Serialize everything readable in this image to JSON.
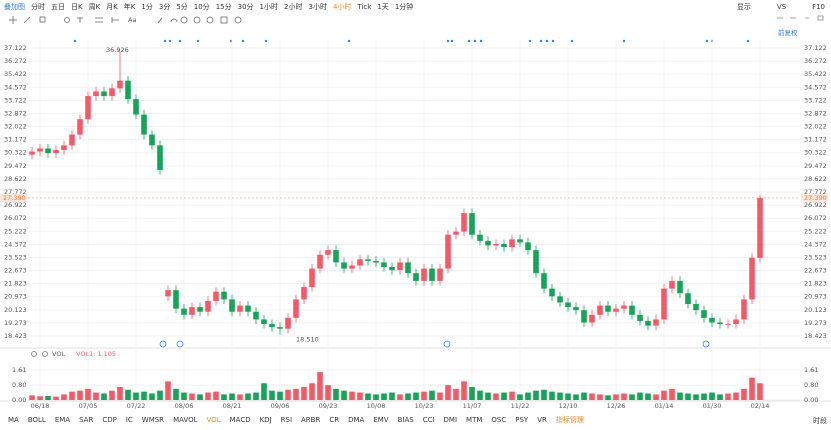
{
  "toolbar": {
    "first": "叠加图",
    "tabs": [
      "分时",
      "五日",
      "日K",
      "周K",
      "月K",
      "年K",
      "1分",
      "3分",
      "5分",
      "10分",
      "15分",
      "30分",
      "1小时",
      "2小时",
      "3小时",
      "4小时",
      "Tick",
      "1天",
      "1分钟"
    ],
    "active": 15,
    "right": [
      "显示",
      "VS",
      "F10"
    ]
  },
  "adjust": "前复权",
  "indicators": {
    "items": [
      "MA",
      "BOLL",
      "EMA",
      "SAR",
      "CDP",
      "IC",
      "WMSR",
      "MAVOL",
      "VOL",
      "MACD",
      "KDJ",
      "RSI",
      "ARBR",
      "CR",
      "DMA",
      "EMV",
      "BIAS",
      "CCI",
      "DMI",
      "MTM",
      "OSC",
      "PSY",
      "VR",
      "指标管理"
    ],
    "active": [
      8,
      23
    ],
    "session": "时段"
  },
  "chart_data": {
    "type": "candlestick",
    "up_color": "#f25a6a",
    "down_color": "#17a35a",
    "grid": true,
    "categories": [
      null,
      "06/18",
      null,
      null,
      null,
      null,
      null,
      "07/05",
      null,
      null,
      null,
      null,
      null,
      "07/22",
      null,
      null,
      null,
      null,
      null,
      "08/06",
      null,
      null,
      null,
      null,
      null,
      "08/21",
      null,
      null,
      null,
      null,
      null,
      "09/06",
      null,
      null,
      null,
      null,
      null,
      "09/23",
      null,
      null,
      null,
      null,
      null,
      "10/08",
      null,
      null,
      null,
      null,
      null,
      "10/23",
      null,
      null,
      null,
      null,
      null,
      "11/07",
      null,
      null,
      null,
      null,
      null,
      "11/22",
      null,
      null,
      null,
      null,
      null,
      "12/10",
      null,
      null,
      null,
      null,
      null,
      "12/26",
      null,
      null,
      null,
      null,
      null,
      "01/14",
      null,
      null,
      null,
      null,
      null,
      "01/30",
      null,
      null,
      null,
      null,
      null,
      "02/14"
    ],
    "open": [
      30.2,
      30.4,
      30.6,
      30.3,
      30.5,
      30.8,
      31.5,
      32.5,
      34.0,
      34.3,
      34.0,
      34.5,
      35.0,
      33.8,
      32.8,
      31.5,
      30.8,
      21.0,
      21.4,
      20.2,
      19.8,
      20.3,
      20.0,
      20.7,
      21.3,
      20.8,
      20.0,
      20.4,
      20.0,
      19.5,
      19.2,
      19.0,
      18.9,
      19.6,
      20.8,
      21.6,
      22.8,
      23.7,
      24.0,
      23.2,
      22.8,
      23.0,
      23.4,
      23.3,
      23.2,
      22.9,
      22.7,
      23.2,
      22.5,
      22.0,
      22.8,
      22.0,
      22.8,
      25.0,
      25.2,
      26.4,
      25.0,
      24.6,
      24.3,
      24.4,
      24.2,
      24.7,
      24.5,
      24.0,
      22.5,
      21.5,
      21.0,
      20.6,
      20.3,
      20.1,
      19.3,
      19.8,
      20.4,
      20.0,
      20.2,
      20.4,
      19.8,
      19.4,
      19.1,
      19.5,
      21.5,
      22.0,
      21.2,
      20.5,
      20.1,
      19.6,
      19.3,
      19.2,
      19.2,
      19.5,
      20.8,
      23.5
    ],
    "high": [
      30.7,
      30.9,
      30.9,
      30.8,
      31.1,
      31.8,
      32.8,
      34.3,
      34.6,
      34.6,
      34.8,
      36.926,
      35.3,
      34.1,
      33.1,
      31.8,
      31.1,
      21.7,
      21.7,
      20.5,
      20.6,
      20.6,
      21.0,
      21.6,
      21.6,
      21.1,
      20.7,
      20.7,
      20.3,
      19.8,
      19.5,
      19.3,
      19.9,
      21.1,
      21.9,
      23.1,
      24.0,
      24.3,
      24.3,
      23.5,
      23.3,
      23.7,
      23.7,
      23.6,
      23.5,
      23.2,
      23.5,
      23.5,
      22.8,
      23.1,
      23.1,
      23.1,
      25.3,
      25.5,
      26.7,
      26.7,
      25.3,
      24.9,
      24.7,
      24.7,
      25.0,
      25.0,
      24.8,
      24.3,
      22.8,
      21.8,
      21.3,
      20.9,
      20.6,
      20.4,
      20.1,
      20.7,
      20.7,
      20.5,
      20.7,
      20.7,
      20.1,
      19.7,
      19.8,
      21.8,
      22.3,
      22.3,
      21.5,
      20.8,
      20.4,
      19.9,
      19.6,
      19.5,
      19.8,
      21.1,
      23.8,
      27.6
    ],
    "low": [
      29.9,
      30.1,
      30.0,
      30.0,
      30.2,
      30.5,
      31.2,
      32.2,
      33.7,
      33.7,
      33.7,
      34.2,
      33.5,
      32.5,
      31.2,
      30.5,
      28.9,
      20.7,
      19.9,
      19.5,
      19.5,
      19.7,
      19.7,
      20.4,
      20.5,
      19.7,
      19.7,
      19.7,
      19.2,
      18.9,
      18.7,
      18.51,
      18.6,
      19.3,
      20.5,
      21.3,
      22.5,
      23.4,
      22.9,
      22.5,
      22.5,
      22.7,
      23.0,
      22.9,
      22.6,
      22.4,
      22.4,
      22.2,
      21.7,
      21.7,
      21.7,
      21.7,
      22.5,
      24.7,
      24.9,
      24.7,
      24.3,
      24.0,
      24.0,
      23.9,
      23.9,
      24.2,
      23.7,
      22.2,
      21.2,
      20.7,
      20.3,
      20.0,
      19.8,
      19.0,
      19.0,
      19.5,
      19.7,
      19.7,
      19.9,
      19.5,
      19.1,
      18.8,
      18.8,
      19.2,
      21.2,
      20.9,
      20.2,
      19.8,
      19.3,
      19.0,
      18.9,
      18.9,
      18.9,
      19.2,
      20.5,
      23.2
    ],
    "close": [
      30.4,
      30.6,
      30.3,
      30.5,
      30.8,
      31.5,
      32.5,
      34.0,
      34.3,
      34.0,
      34.5,
      35.0,
      33.8,
      32.8,
      31.5,
      30.8,
      29.2,
      21.4,
      20.2,
      19.8,
      20.3,
      20.0,
      20.7,
      21.3,
      20.8,
      20.0,
      20.4,
      20.0,
      19.5,
      19.2,
      19.0,
      18.9,
      19.6,
      20.8,
      21.6,
      22.8,
      23.7,
      24.0,
      23.2,
      22.8,
      23.0,
      23.4,
      23.3,
      23.2,
      22.9,
      22.7,
      23.2,
      22.5,
      22.0,
      22.8,
      22.0,
      22.8,
      25.0,
      25.2,
      26.4,
      25.0,
      24.6,
      24.3,
      24.4,
      24.2,
      24.7,
      24.5,
      24.0,
      22.5,
      21.5,
      21.0,
      20.6,
      20.3,
      20.1,
      19.3,
      19.8,
      20.4,
      20.0,
      20.2,
      20.4,
      19.8,
      19.4,
      19.1,
      19.5,
      21.5,
      22.0,
      21.2,
      20.5,
      20.1,
      19.6,
      19.3,
      19.2,
      19.2,
      19.5,
      20.8,
      23.5,
      27.39
    ],
    "ylim": [
      17.84,
      37.64
    ],
    "yticks": [
      37.122,
      36.272,
      35.422,
      34.572,
      33.722,
      32.872,
      32.022,
      31.172,
      30.322,
      29.472,
      28.622,
      27.772,
      26.922,
      26.072,
      25.222,
      24.372,
      23.523,
      22.673,
      21.823,
      20.973,
      20.123,
      19.273,
      18.423
    ],
    "max_mark": {
      "index": 11,
      "value": 36.926,
      "label": "36.926"
    },
    "min_mark": {
      "index": 31,
      "value": 18.51,
      "label": "18.510"
    },
    "last_price": {
      "value": 27.39,
      "label": "27.390",
      "color": "#f5a97b"
    },
    "volume_title": "VOL",
    "volume_legend": "VOL1: 1.105",
    "volume": [
      0.25,
      0.2,
      0.22,
      0.18,
      0.3,
      0.45,
      0.5,
      0.6,
      0.4,
      0.35,
      0.5,
      0.7,
      0.55,
      0.4,
      0.45,
      0.35,
      0.5,
      1.0,
      0.6,
      0.4,
      0.35,
      0.3,
      0.4,
      0.45,
      0.3,
      0.35,
      0.3,
      0.35,
      0.4,
      0.9,
      0.5,
      0.45,
      0.55,
      0.6,
      0.7,
      0.9,
      1.5,
      0.8,
      0.6,
      0.5,
      0.45,
      0.4,
      0.35,
      0.3,
      0.35,
      0.4,
      0.3,
      0.35,
      0.4,
      0.45,
      0.5,
      0.4,
      0.8,
      0.6,
      1.0,
      0.7,
      0.5,
      0.4,
      0.35,
      0.4,
      0.45,
      0.3,
      0.4,
      0.5,
      0.55,
      0.45,
      0.4,
      0.35,
      0.3,
      0.4,
      0.35,
      0.3,
      0.25,
      0.3,
      0.35,
      0.3,
      0.4,
      0.35,
      0.3,
      0.5,
      0.6,
      0.4,
      0.35,
      0.3,
      0.35,
      0.4,
      0.3,
      0.35,
      0.4,
      0.6,
      1.2,
      0.9
    ],
    "vlim": [
      0,
      2.04
    ],
    "vticks": [
      1.61,
      {
        "value": 0.8,
        "label": "0.80"
      },
      {
        "value": 0,
        "label": "0.00"
      }
    ]
  }
}
